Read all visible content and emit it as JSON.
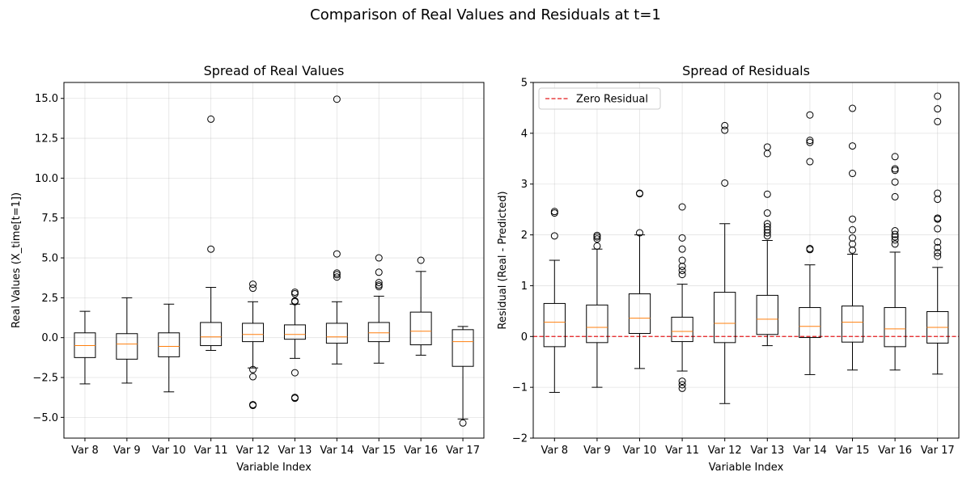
{
  "figure": {
    "suptitle": "Comparison of Real Values and Residuals at t=1"
  },
  "chart_data": [
    {
      "type": "box",
      "title": "Spread of Real Values",
      "xlabel": "Variable Index",
      "ylabel": "Real Values (X_time[t=1])",
      "ylim": [
        -6.3,
        16.0
      ],
      "yticks": [
        -5.0,
        -2.5,
        0.0,
        2.5,
        5.0,
        7.5,
        10.0,
        12.5,
        15.0
      ],
      "ytick_labels": [
        "−5.0",
        "−2.5",
        "0.0",
        "2.5",
        "5.0",
        "7.5",
        "10.0",
        "12.5",
        "15.0"
      ],
      "grid": true,
      "categories": [
        "Var 8",
        "Var 9",
        "Var 10",
        "Var 11",
        "Var 12",
        "Var 13",
        "Var 14",
        "Var 15",
        "Var 16",
        "Var 17"
      ],
      "boxes": [
        {
          "whislo": -2.9,
          "q1": -1.25,
          "med": -0.5,
          "q3": 0.3,
          "whishi": 1.65,
          "fliers": []
        },
        {
          "whislo": -2.85,
          "q1": -1.35,
          "med": -0.4,
          "q3": 0.25,
          "whishi": 2.5,
          "fliers": []
        },
        {
          "whislo": -3.4,
          "q1": -1.2,
          "med": -0.55,
          "q3": 0.3,
          "whishi": 2.1,
          "fliers": []
        },
        {
          "whislo": -0.8,
          "q1": -0.5,
          "med": 0.05,
          "q3": 0.95,
          "whishi": 3.15,
          "fliers": [
            5.55,
            13.7
          ]
        },
        {
          "whislo": -1.9,
          "q1": -0.25,
          "med": 0.2,
          "q3": 0.9,
          "whishi": 2.25,
          "fliers": [
            -2.0,
            -2.45,
            -4.2,
            -4.25,
            3.1,
            3.35
          ]
        },
        {
          "whislo": -1.3,
          "q1": -0.1,
          "med": 0.2,
          "q3": 0.8,
          "whishi": 2.1,
          "fliers": [
            -2.2,
            -3.75,
            -3.8,
            2.25,
            2.3,
            2.75,
            2.85
          ]
        },
        {
          "whislo": -1.65,
          "q1": -0.35,
          "med": 0.05,
          "q3": 0.9,
          "whishi": 2.25,
          "fliers": [
            3.8,
            3.95,
            4.05,
            5.25,
            14.95
          ]
        },
        {
          "whislo": -1.6,
          "q1": -0.25,
          "med": 0.3,
          "q3": 0.95,
          "whishi": 2.6,
          "fliers": [
            3.2,
            3.3,
            3.45,
            4.1,
            5.0
          ]
        },
        {
          "whislo": -1.1,
          "q1": -0.45,
          "med": 0.4,
          "q3": 1.6,
          "whishi": 4.15,
          "fliers": [
            4.85
          ]
        },
        {
          "whislo": -5.1,
          "q1": -1.8,
          "med": -0.25,
          "q3": 0.5,
          "whishi": 0.7,
          "fliers": [
            -5.35
          ]
        }
      ]
    },
    {
      "type": "box",
      "title": "Spread of Residuals",
      "xlabel": "Variable Index",
      "ylabel": "Residual (Real - Predicted)",
      "ylim": [
        -2,
        5
      ],
      "yticks": [
        -2,
        -1,
        0,
        1,
        2,
        3,
        4,
        5
      ],
      "ytick_labels": [
        "−2",
        "−1",
        "0",
        "1",
        "2",
        "3",
        "4",
        "5"
      ],
      "grid": true,
      "legend": {
        "position": "upper-left",
        "entries": [
          "Zero Residual"
        ]
      },
      "reference_line": {
        "y": 0,
        "label": "Zero Residual",
        "color": "#e41a1c",
        "style": "dashed"
      },
      "categories": [
        "Var 8",
        "Var 9",
        "Var 10",
        "Var 11",
        "Var 12",
        "Var 13",
        "Var 14",
        "Var 15",
        "Var 16",
        "Var 17"
      ],
      "boxes": [
        {
          "whislo": -1.1,
          "q1": -0.2,
          "med": 0.28,
          "q3": 0.65,
          "whishi": 1.5,
          "fliers": [
            1.98,
            2.43,
            2.46
          ]
        },
        {
          "whislo": -1.0,
          "q1": -0.12,
          "med": 0.18,
          "q3": 0.62,
          "whishi": 1.72,
          "fliers": [
            1.78,
            1.92,
            1.96,
            1.99
          ]
        },
        {
          "whislo": -0.63,
          "q1": 0.06,
          "med": 0.36,
          "q3": 0.84,
          "whishi": 2.0,
          "fliers": [
            2.04,
            2.81,
            2.82
          ]
        },
        {
          "whislo": -0.68,
          "q1": -0.1,
          "med": 0.1,
          "q3": 0.38,
          "whishi": 1.03,
          "fliers": [
            -0.88,
            -0.95,
            -1.02,
            1.22,
            1.3,
            1.38,
            1.5,
            1.72,
            1.94,
            2.55
          ]
        },
        {
          "whislo": -1.32,
          "q1": -0.12,
          "med": 0.26,
          "q3": 0.87,
          "whishi": 2.22,
          "fliers": [
            3.02,
            4.06,
            4.15
          ]
        },
        {
          "whislo": -0.18,
          "q1": 0.04,
          "med": 0.34,
          "q3": 0.81,
          "whishi": 1.89,
          "fliers": [
            1.98,
            2.04,
            2.1,
            2.16,
            2.22,
            2.43,
            2.8,
            3.6,
            3.73
          ]
        },
        {
          "whislo": -0.75,
          "q1": -0.02,
          "med": 0.2,
          "q3": 0.57,
          "whishi": 1.41,
          "fliers": [
            1.71,
            1.73,
            3.44,
            3.82,
            3.86,
            4.36
          ]
        },
        {
          "whislo": -0.66,
          "q1": -0.11,
          "med": 0.28,
          "q3": 0.6,
          "whishi": 1.62,
          "fliers": [
            1.7,
            1.82,
            1.94,
            2.1,
            2.31,
            3.21,
            3.75,
            4.49
          ]
        },
        {
          "whislo": -0.66,
          "q1": -0.2,
          "med": 0.15,
          "q3": 0.57,
          "whishi": 1.66,
          "fliers": [
            1.82,
            1.9,
            1.96,
            2.01,
            2.08,
            2.75,
            3.04,
            3.27,
            3.3,
            3.54
          ]
        },
        {
          "whislo": -0.74,
          "q1": -0.13,
          "med": 0.18,
          "q3": 0.49,
          "whishi": 1.36,
          "fliers": [
            1.58,
            1.65,
            1.75,
            1.86,
            2.12,
            2.31,
            2.33,
            2.7,
            2.82,
            4.23,
            4.48,
            4.73
          ]
        }
      ]
    }
  ]
}
